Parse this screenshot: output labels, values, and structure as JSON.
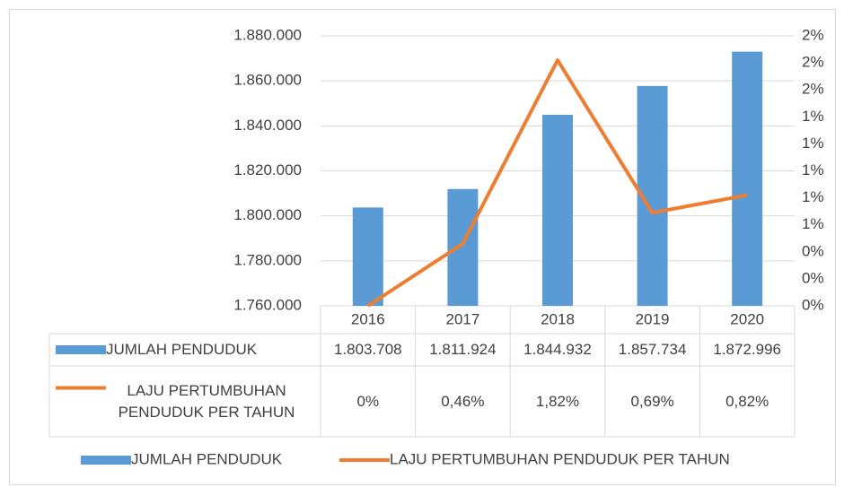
{
  "chart_data": {
    "type": "bar-line-table",
    "categories": [
      "2016",
      "2017",
      "2018",
      "2019",
      "2020"
    ],
    "series": [
      {
        "name": "JUMLAH PENDUDUK",
        "type": "bar",
        "color": "#5b9bd5",
        "values": [
          1803708,
          1811924,
          1844932,
          1857734,
          1872996
        ],
        "value_labels": [
          "1.803.708",
          "1.811.924",
          "1.844.932",
          "1.857.734",
          "1.872.996"
        ]
      },
      {
        "name": "LAJU PERTUMBUHAN PENDUDUK PER TAHUN",
        "type": "line",
        "axis": "y2",
        "color": "#ed7d31",
        "values": [
          0,
          0.46,
          1.82,
          0.69,
          0.82
        ],
        "value_labels": [
          "0%",
          "0,46%",
          "1,82%",
          "0,69%",
          "0,82%"
        ]
      }
    ],
    "ylim": [
      1760000,
      1880000
    ],
    "yticks": [
      {
        "value": 1760000,
        "label": "1.760.000"
      },
      {
        "value": 1780000,
        "label": "1.780.000"
      },
      {
        "value": 1800000,
        "label": "1.800.000"
      },
      {
        "value": 1820000,
        "label": "1.820.000"
      },
      {
        "value": 1840000,
        "label": "1.840.000"
      },
      {
        "value": 1860000,
        "label": "1.860.000"
      },
      {
        "value": 1880000,
        "label": "1.880.000"
      }
    ],
    "y2lim": [
      0,
      2
    ],
    "y2ticks": [
      {
        "value": 0,
        "label": "0%"
      },
      {
        "value": 0.2,
        "label": "0%"
      },
      {
        "value": 0.4,
        "label": "0%"
      },
      {
        "value": 0.6,
        "label": "1%"
      },
      {
        "value": 0.8,
        "label": "1%"
      },
      {
        "value": 1.0,
        "label": "1%"
      },
      {
        "value": 1.2,
        "label": "1%"
      },
      {
        "value": 1.4,
        "label": "1%"
      },
      {
        "value": 1.6,
        "label": "2%"
      },
      {
        "value": 1.8,
        "label": "2%"
      },
      {
        "value": 2.0,
        "label": "2%"
      }
    ],
    "grid": true,
    "legend": "bottom"
  }
}
